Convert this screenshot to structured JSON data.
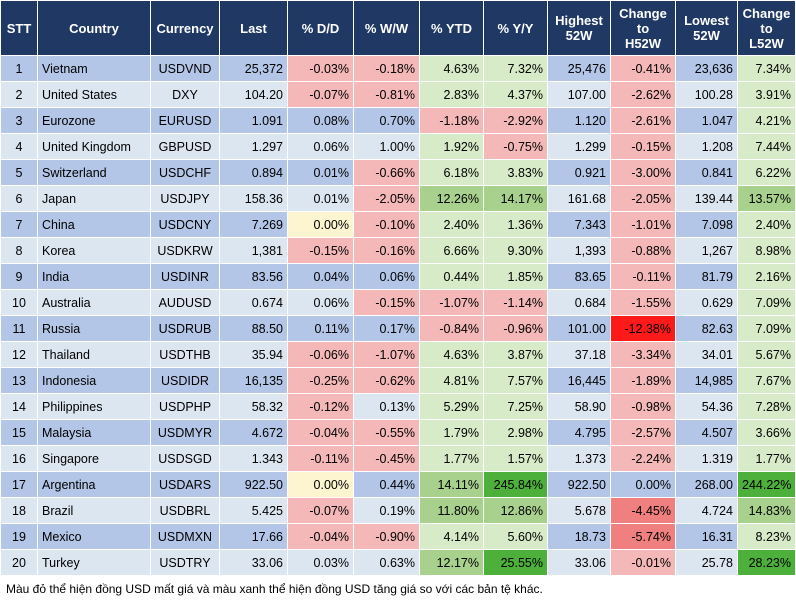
{
  "headers": [
    "STT",
    "Country",
    "Currency",
    "Last",
    "% D/D",
    "% W/W",
    "% YTD",
    "% Y/Y",
    "Highest\n52W",
    "Change\nto\nH52W",
    "Lowest\n52W",
    "Change\nto\nL52W"
  ],
  "rows": [
    [
      "1",
      "Vietnam",
      "USDVND",
      "25,372",
      "-0.03%",
      "-0.18%",
      "4.63%",
      "7.32%",
      "25,476",
      "-0.41%",
      "23,636",
      "7.34%"
    ],
    [
      "2",
      "United States",
      "DXY",
      "104.20",
      "-0.07%",
      "-0.81%",
      "2.83%",
      "4.37%",
      "107.00",
      "-2.62%",
      "100.28",
      "3.91%"
    ],
    [
      "3",
      "Eurozone",
      "EURUSD",
      "1.091",
      "0.08%",
      "0.70%",
      "-1.18%",
      "-2.92%",
      "1.120",
      "-2.61%",
      "1.047",
      "4.21%"
    ],
    [
      "4",
      "United Kingdom",
      "GBPUSD",
      "1.297",
      "0.06%",
      "1.00%",
      "1.92%",
      "-0.75%",
      "1.299",
      "-0.15%",
      "1.208",
      "7.44%"
    ],
    [
      "5",
      "Switzerland",
      "USDCHF",
      "0.894",
      "0.01%",
      "-0.66%",
      "6.18%",
      "3.83%",
      "0.921",
      "-3.00%",
      "0.841",
      "6.22%"
    ],
    [
      "6",
      "Japan",
      "USDJPY",
      "158.36",
      "0.01%",
      "-2.05%",
      "12.26%",
      "14.17%",
      "161.68",
      "-2.05%",
      "139.44",
      "13.57%"
    ],
    [
      "7",
      "China",
      "USDCNY",
      "7.269",
      "0.00%",
      "-0.10%",
      "2.40%",
      "1.36%",
      "7.343",
      "-1.01%",
      "7.098",
      "2.40%"
    ],
    [
      "8",
      "Korea",
      "USDKRW",
      "1,381",
      "-0.15%",
      "-0.16%",
      "6.66%",
      "9.30%",
      "1,393",
      "-0.88%",
      "1,267",
      "8.98%"
    ],
    [
      "9",
      "India",
      "USDINR",
      "83.56",
      "0.04%",
      "0.06%",
      "0.44%",
      "1.85%",
      "83.65",
      "-0.11%",
      "81.79",
      "2.16%"
    ],
    [
      "10",
      "Australia",
      "AUDUSD",
      "0.674",
      "0.06%",
      "-0.15%",
      "-1.07%",
      "-1.14%",
      "0.684",
      "-1.55%",
      "0.629",
      "7.09%"
    ],
    [
      "11",
      "Russia",
      "USDRUB",
      "88.50",
      "0.11%",
      "0.17%",
      "-0.84%",
      "-0.96%",
      "101.00",
      "-12.38%",
      "82.63",
      "7.09%"
    ],
    [
      "12",
      "Thailand",
      "USDTHB",
      "35.94",
      "-0.06%",
      "-1.07%",
      "4.63%",
      "3.87%",
      "37.18",
      "-3.34%",
      "34.01",
      "5.67%"
    ],
    [
      "13",
      "Indonesia",
      "USDIDR",
      "16,135",
      "-0.25%",
      "-0.62%",
      "4.81%",
      "7.57%",
      "16,445",
      "-1.89%",
      "14,985",
      "7.67%"
    ],
    [
      "14",
      "Philippines",
      "USDPHP",
      "58.32",
      "-0.12%",
      "0.13%",
      "5.29%",
      "7.25%",
      "58.90",
      "-0.98%",
      "54.36",
      "7.28%"
    ],
    [
      "15",
      "Malaysia",
      "USDMYR",
      "4.672",
      "-0.04%",
      "-0.55%",
      "1.79%",
      "2.98%",
      "4.795",
      "-2.57%",
      "4.507",
      "3.66%"
    ],
    [
      "16",
      "Singapore",
      "USDSGD",
      "1.343",
      "-0.11%",
      "-0.45%",
      "1.77%",
      "1.57%",
      "1.373",
      "-2.24%",
      "1.319",
      "1.77%"
    ],
    [
      "17",
      "Argentina",
      "USDARS",
      "922.50",
      "0.00%",
      "0.44%",
      "14.11%",
      "245.84%",
      "922.50",
      "0.00%",
      "268.00",
      "244.22%"
    ],
    [
      "18",
      "Brazil",
      "USDBRL",
      "5.425",
      "-0.07%",
      "0.19%",
      "11.80%",
      "12.86%",
      "5.678",
      "-4.45%",
      "4.724",
      "14.83%"
    ],
    [
      "19",
      "Mexico",
      "USDMXN",
      "17.66",
      "-0.04%",
      "-0.90%",
      "4.14%",
      "5.60%",
      "18.73",
      "-5.74%",
      "16.31",
      "8.23%"
    ],
    [
      "20",
      "Turkey",
      "USDTRY",
      "33.06",
      "0.03%",
      "0.63%",
      "12.17%",
      "25.55%",
      "33.06",
      "-0.01%",
      "25.78",
      "28.23%"
    ]
  ],
  "colors": {
    "header_bg": "#1f3864",
    "row_odd": "#b4c6e7",
    "row_even": "#dce6f1",
    "neg_light": "#f4b8b8",
    "neg_mid": "#f08080",
    "neg_strong": "#ff1a1a",
    "pos_light": "#d8ebc8",
    "pos_mid": "#a9d18e",
    "pos_strong": "#4cb03a",
    "neutral": "#fdf5cf"
  },
  "footnote": "Màu đỏ thể hiện đồng USD mất giá và màu xanh thể hiện đồng USD tăng giá so với các bản tệ khác."
}
